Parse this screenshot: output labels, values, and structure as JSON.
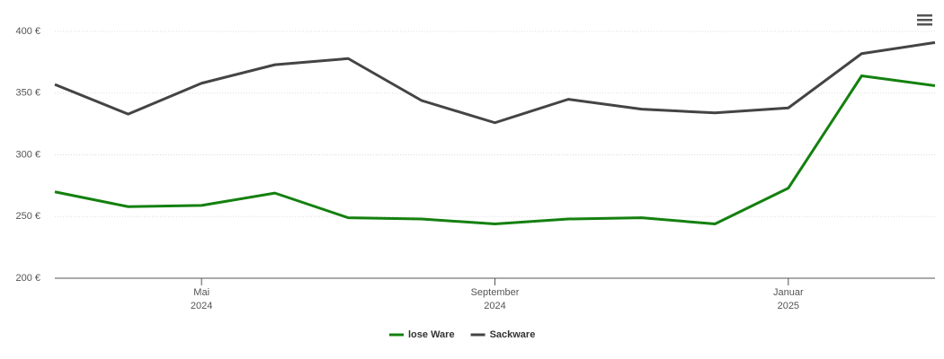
{
  "chart_data": {
    "type": "line",
    "x": [
      "2024-03",
      "2024-04",
      "2024-05",
      "2024-06",
      "2024-07",
      "2024-08",
      "2024-09",
      "2024-10",
      "2024-11",
      "2024-12",
      "2025-01",
      "2025-02",
      "2025-03"
    ],
    "series": [
      {
        "name": "lose Ware",
        "color": "#14800f",
        "values": [
          270,
          258,
          259,
          269,
          249,
          248,
          244,
          248,
          249,
          244,
          273,
          364,
          356
        ]
      },
      {
        "name": "Sackware",
        "color": "#444444",
        "values": [
          357,
          333,
          358,
          373,
          378,
          344,
          326,
          345,
          337,
          334,
          338,
          382,
          391
        ]
      }
    ],
    "xlim": [
      "2024-03",
      "2025-03"
    ],
    "xticks": [
      {
        "value": "2024-05",
        "label": [
          "Mai",
          "2024"
        ]
      },
      {
        "value": "2024-09",
        "label": [
          "September",
          "2024"
        ]
      },
      {
        "value": "2025-01",
        "label": [
          "Januar",
          "2025"
        ]
      }
    ],
    "ylim": [
      200,
      400
    ],
    "yticks": [
      {
        "value": 200,
        "label": "200 €"
      },
      {
        "value": 250,
        "label": "250 €"
      },
      {
        "value": 300,
        "label": "300 €"
      },
      {
        "value": 350,
        "label": "350 €"
      },
      {
        "value": 400,
        "label": "400 €"
      }
    ],
    "grid": true,
    "legend": "bottom"
  }
}
